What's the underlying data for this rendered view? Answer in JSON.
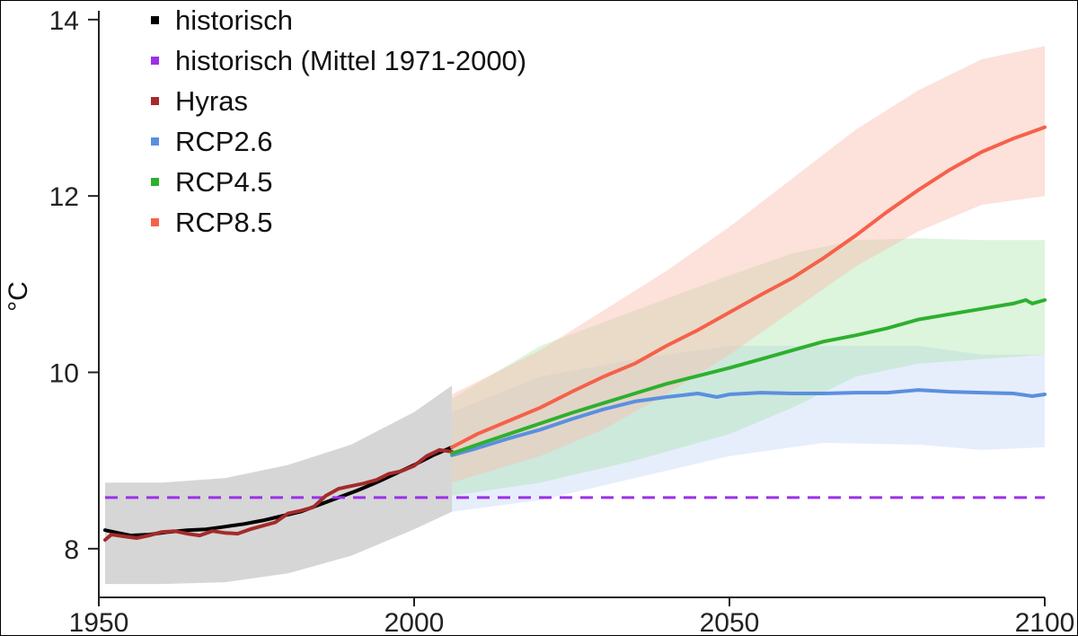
{
  "chart_data": {
    "type": "line",
    "xlabel": "",
    "ylabel": "°C",
    "xlim": [
      1950,
      2100
    ],
    "ylim": [
      7.55,
      14.1
    ],
    "xticks": [
      1950,
      2000,
      2050,
      2100
    ],
    "yticks": [
      8,
      10,
      12,
      14
    ],
    "legend_position": "top-left",
    "series": [
      {
        "name": "historisch",
        "color": "#000000",
        "kind": "line",
        "x": [
          1951,
          1953,
          1955,
          1958,
          1961,
          1964,
          1967,
          1970,
          1973,
          1976,
          1979,
          1982,
          1985,
          1988,
          1991,
          1994,
          1997,
          2000,
          2003,
          2006
        ],
        "y": [
          8.21,
          8.18,
          8.15,
          8.16,
          8.19,
          8.21,
          8.22,
          8.25,
          8.28,
          8.32,
          8.37,
          8.42,
          8.5,
          8.58,
          8.66,
          8.75,
          8.85,
          8.95,
          9.06,
          9.15
        ]
      },
      {
        "name": "historisch (Mittel 1971-2000)",
        "color": "#9b30e8",
        "kind": "dashed",
        "x": [
          1951,
          2100
        ],
        "y": [
          8.58,
          8.58
        ]
      },
      {
        "name": "Hyras",
        "color": "#a52a2a",
        "kind": "line",
        "x": [
          1951,
          1952,
          1954,
          1956,
          1958,
          1960,
          1962,
          1964,
          1966,
          1968,
          1970,
          1972,
          1974,
          1976,
          1978,
          1980,
          1982,
          1984,
          1986,
          1988,
          1990,
          1992,
          1994,
          1996,
          1998,
          2000,
          2002,
          2004,
          2006
        ],
        "y": [
          8.1,
          8.16,
          8.14,
          8.12,
          8.15,
          8.19,
          8.2,
          8.17,
          8.15,
          8.2,
          8.18,
          8.17,
          8.22,
          8.26,
          8.3,
          8.4,
          8.43,
          8.47,
          8.6,
          8.68,
          8.71,
          8.74,
          8.78,
          8.85,
          8.88,
          8.94,
          9.05,
          9.12,
          9.1
        ]
      },
      {
        "name": "RCP2.6",
        "color": "#5b8fe0",
        "kind": "line",
        "x": [
          2006,
          2010,
          2015,
          2020,
          2025,
          2030,
          2035,
          2040,
          2045,
          2048,
          2050,
          2055,
          2060,
          2065,
          2070,
          2075,
          2080,
          2085,
          2090,
          2095,
          2098,
          2100
        ],
        "y": [
          9.06,
          9.14,
          9.25,
          9.35,
          9.47,
          9.58,
          9.67,
          9.72,
          9.76,
          9.72,
          9.75,
          9.77,
          9.76,
          9.76,
          9.77,
          9.77,
          9.8,
          9.78,
          9.77,
          9.76,
          9.73,
          9.75
        ]
      },
      {
        "name": "RCP4.5",
        "color": "#2eb02e",
        "kind": "line",
        "x": [
          2006,
          2010,
          2015,
          2020,
          2025,
          2030,
          2035,
          2040,
          2045,
          2050,
          2055,
          2060,
          2065,
          2070,
          2075,
          2080,
          2085,
          2090,
          2095,
          2097,
          2098,
          2100
        ],
        "y": [
          9.08,
          9.18,
          9.3,
          9.42,
          9.54,
          9.65,
          9.76,
          9.87,
          9.96,
          10.05,
          10.15,
          10.25,
          10.35,
          10.42,
          10.5,
          10.6,
          10.66,
          10.72,
          10.78,
          10.82,
          10.78,
          10.82
        ]
      },
      {
        "name": "RCP8.5",
        "color": "#f5614a",
        "kind": "line",
        "x": [
          2006,
          2010,
          2015,
          2020,
          2025,
          2030,
          2035,
          2040,
          2045,
          2050,
          2055,
          2060,
          2065,
          2070,
          2075,
          2080,
          2085,
          2090,
          2095,
          2100
        ],
        "y": [
          9.15,
          9.3,
          9.45,
          9.6,
          9.78,
          9.95,
          10.1,
          10.3,
          10.48,
          10.68,
          10.88,
          11.07,
          11.3,
          11.55,
          11.82,
          12.07,
          12.3,
          12.5,
          12.65,
          12.78
        ]
      }
    ],
    "bands": [
      {
        "name": "historisch range",
        "color": "#cfcfcf",
        "opacity": 0.85,
        "x": [
          1951,
          1960,
          1970,
          1980,
          1990,
          2000,
          2006
        ],
        "lower": [
          7.6,
          7.6,
          7.62,
          7.72,
          7.92,
          8.22,
          8.42
        ],
        "upper": [
          8.75,
          8.75,
          8.8,
          8.95,
          9.18,
          9.55,
          9.85
        ]
      },
      {
        "name": "RCP2.6 range",
        "color": "#b8cdf5",
        "opacity": 0.35,
        "x": [
          2006,
          2020,
          2035,
          2050,
          2065,
          2080,
          2090,
          2100
        ],
        "lower": [
          8.42,
          8.55,
          8.8,
          9.05,
          9.2,
          9.18,
          9.12,
          9.15
        ],
        "upper": [
          9.55,
          9.95,
          10.15,
          10.3,
          10.3,
          10.3,
          10.2,
          10.2
        ]
      },
      {
        "name": "RCP4.5 range",
        "color": "#9fe09f",
        "opacity": 0.35,
        "x": [
          2006,
          2020,
          2035,
          2050,
          2060,
          2070,
          2080,
          2090,
          2100
        ],
        "lower": [
          8.6,
          8.75,
          9.0,
          9.3,
          9.6,
          9.95,
          10.1,
          10.15,
          10.2
        ],
        "upper": [
          9.7,
          10.3,
          10.7,
          11.1,
          11.35,
          11.5,
          11.52,
          11.5,
          11.5
        ]
      },
      {
        "name": "RCP8.5 range",
        "color": "#fbbcb0",
        "opacity": 0.45,
        "x": [
          2006,
          2020,
          2030,
          2040,
          2050,
          2060,
          2070,
          2080,
          2090,
          2100
        ],
        "lower": [
          8.75,
          9.05,
          9.35,
          9.75,
          10.2,
          10.7,
          11.2,
          11.6,
          11.9,
          12.0
        ],
        "upper": [
          9.75,
          10.25,
          10.7,
          11.15,
          11.65,
          12.2,
          12.75,
          13.2,
          13.55,
          13.7
        ]
      }
    ]
  }
}
